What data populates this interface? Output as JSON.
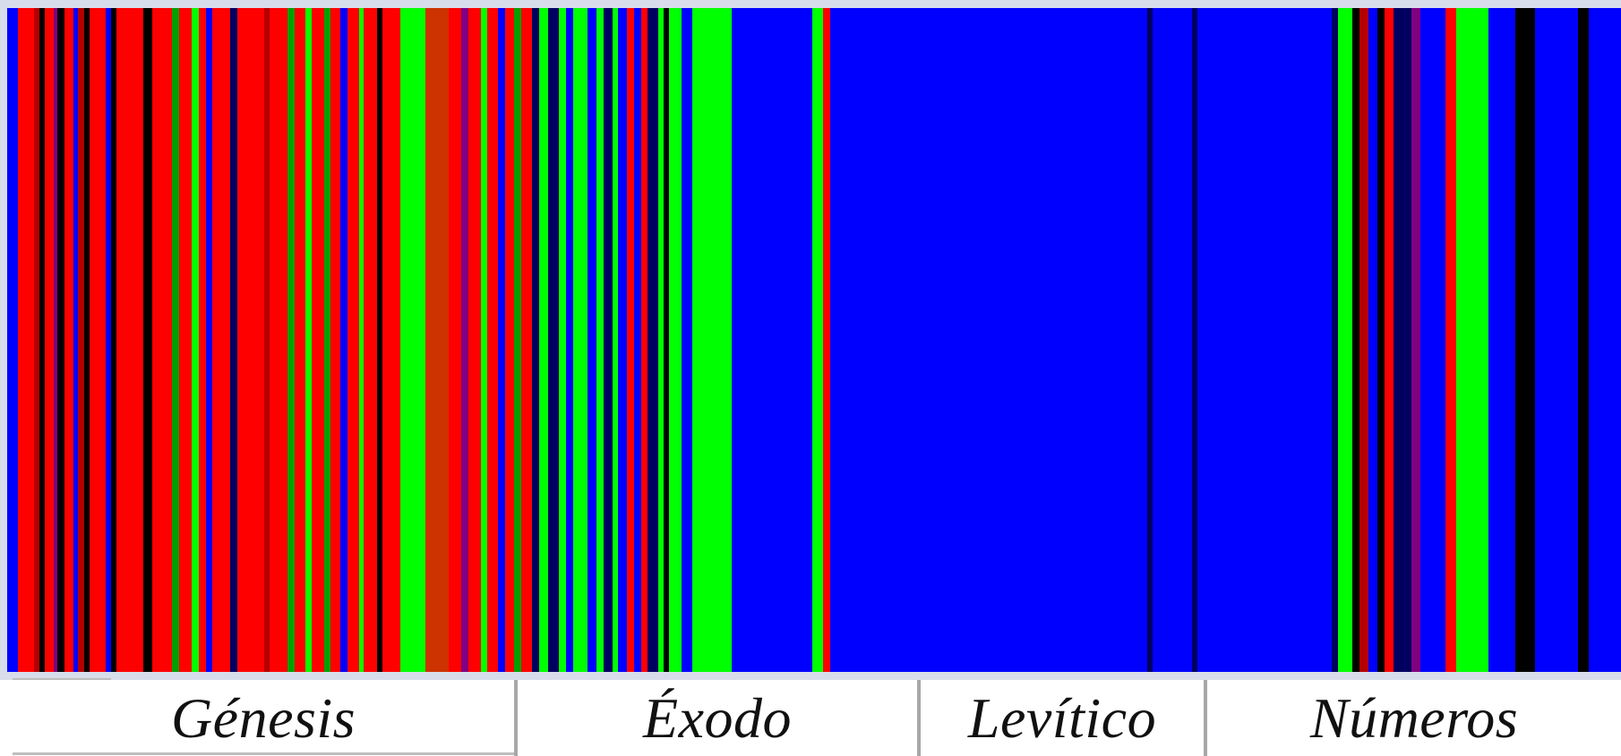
{
  "colors": {
    "red": "#ff0000",
    "green": "#00ff00",
    "blue": "#0000ff",
    "black": "#000000",
    "dark_red": "#b40000",
    "dark_green": "#00a000",
    "navy": "#000060",
    "purple": "#800080",
    "orange_red": "#cc3300"
  },
  "books": [
    {
      "label": "Génesis"
    },
    {
      "label": "Éxodo"
    },
    {
      "label": "Levítico"
    },
    {
      "label": "Números"
    }
  ],
  "stripes": [
    [
      "blue",
      0,
      12
    ],
    [
      "red",
      12,
      18
    ],
    [
      "dark_red",
      30,
      6
    ],
    [
      "black",
      36,
      6
    ],
    [
      "red",
      42,
      10
    ],
    [
      "purple",
      52,
      4
    ],
    [
      "black",
      56,
      8
    ],
    [
      "red",
      64,
      10
    ],
    [
      "blue",
      74,
      5
    ],
    [
      "dark_red",
      79,
      7
    ],
    [
      "black",
      86,
      6
    ],
    [
      "red",
      92,
      18
    ],
    [
      "blue",
      110,
      6
    ],
    [
      "black",
      116,
      6
    ],
    [
      "red",
      122,
      30
    ],
    [
      "black",
      152,
      10
    ],
    [
      "red",
      162,
      22
    ],
    [
      "dark_green",
      184,
      8
    ],
    [
      "red",
      192,
      14
    ],
    [
      "green",
      206,
      8
    ],
    [
      "red",
      214,
      8
    ],
    [
      "blue",
      222,
      7
    ],
    [
      "red",
      229,
      20
    ],
    [
      "navy",
      249,
      8
    ],
    [
      "red",
      257,
      30
    ],
    [
      "dark_red",
      287,
      6
    ],
    [
      "red",
      293,
      20
    ],
    [
      "dark_green",
      313,
      8
    ],
    [
      "red",
      321,
      12
    ],
    [
      "green",
      333,
      7
    ],
    [
      "red",
      340,
      14
    ],
    [
      "dark_green",
      354,
      7
    ],
    [
      "red",
      361,
      11
    ],
    [
      "blue",
      372,
      8
    ],
    [
      "red",
      380,
      13
    ],
    [
      "green",
      393,
      5
    ],
    [
      "red",
      398,
      15
    ],
    [
      "black",
      413,
      6
    ],
    [
      "red",
      419,
      20
    ],
    [
      "green",
      439,
      28
    ],
    [
      "orange_red",
      467,
      26
    ],
    [
      "red",
      493,
      14
    ],
    [
      "purple",
      507,
      8
    ],
    [
      "red",
      515,
      14
    ],
    [
      "green",
      529,
      7
    ],
    [
      "red",
      536,
      12
    ],
    [
      "blue",
      548,
      8
    ],
    [
      "red",
      556,
      10
    ],
    [
      "dark_green",
      566,
      8
    ],
    [
      "red",
      574,
      12
    ],
    [
      "navy",
      586,
      8
    ],
    [
      "green",
      594,
      10
    ],
    [
      "navy",
      604,
      12
    ],
    [
      "green",
      616,
      8
    ],
    [
      "blue",
      624,
      8
    ],
    [
      "green",
      632,
      16
    ],
    [
      "blue",
      648,
      10
    ],
    [
      "green",
      658,
      8
    ],
    [
      "navy",
      666,
      10
    ],
    [
      "green",
      676,
      6
    ],
    [
      "blue",
      682,
      10
    ],
    [
      "red",
      692,
      8
    ],
    [
      "blue",
      700,
      8
    ],
    [
      "red",
      708,
      7
    ],
    [
      "navy",
      715,
      12
    ],
    [
      "green",
      727,
      6
    ],
    [
      "black",
      733,
      6
    ],
    [
      "green",
      739,
      14
    ],
    [
      "blue",
      753,
      12
    ],
    [
      "green",
      765,
      44
    ],
    [
      "blue",
      809,
      90
    ],
    [
      "green",
      899,
      12
    ],
    [
      "red",
      911,
      8
    ],
    [
      "blue",
      919,
      354
    ],
    [
      "navy",
      1273,
      6
    ],
    [
      "blue",
      1279,
      44
    ],
    [
      "navy",
      1323,
      6
    ],
    [
      "blue",
      1329,
      150
    ],
    [
      "navy",
      1479,
      7
    ],
    [
      "green",
      1486,
      16
    ],
    [
      "black",
      1502,
      8
    ],
    [
      "dark_red",
      1510,
      10
    ],
    [
      "blue",
      1520,
      10
    ],
    [
      "black",
      1530,
      8
    ],
    [
      "red",
      1538,
      10
    ],
    [
      "navy",
      1548,
      20
    ],
    [
      "purple",
      1568,
      10
    ],
    [
      "blue",
      1578,
      28
    ],
    [
      "red",
      1606,
      12
    ],
    [
      "green",
      1618,
      36
    ],
    [
      "blue",
      1654,
      30
    ],
    [
      "black",
      1684,
      22
    ],
    [
      "blue",
      1706,
      48
    ],
    [
      "black",
      1754,
      12
    ],
    [
      "blue",
      1766,
      36
    ]
  ]
}
